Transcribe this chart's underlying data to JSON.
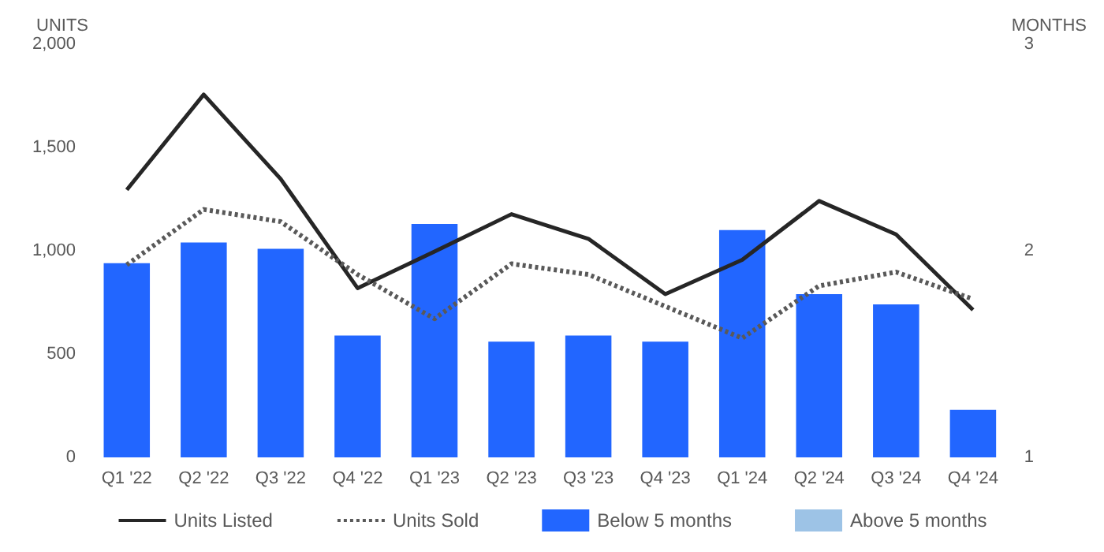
{
  "chart_data": {
    "type": "bar",
    "ylabel": "UNITS",
    "y2label": "MONTHS",
    "categories": [
      "Q1 '22",
      "Q2 '22",
      "Q3 '22",
      "Q4 '22",
      "Q1 '23",
      "Q2 '23",
      "Q3 '23",
      "Q4 '23",
      "Q1 '24",
      "Q2 '24",
      "Q3 '24",
      "Q4 '24"
    ],
    "series": [
      {
        "name": "Units Listed",
        "type": "line",
        "color": "#262626",
        "line_style": "solid",
        "values": [
          1295,
          1756,
          1348,
          819,
          996,
          1177,
          1058,
          790,
          956,
          1241,
          1079,
          714
        ]
      },
      {
        "name": "Units Sold",
        "type": "line",
        "color": "#595959",
        "line_style": "dotted",
        "values": [
          932,
          1200,
          1141,
          885,
          671,
          937,
          885,
          731,
          577,
          830,
          897,
          766
        ]
      },
      {
        "name": "Below 5 months",
        "axis": "y2",
        "color": "#2266ff",
        "values": [
          1.94,
          2.04,
          2.01,
          1.59,
          2.13,
          1.56,
          1.59,
          1.56,
          2.1,
          1.79,
          1.74,
          1.23
        ]
      },
      {
        "name": "Above 5 months",
        "axis": "y2",
        "color": "#9dc3e6",
        "values": [
          null,
          null,
          null,
          null,
          null,
          null,
          null,
          null,
          null,
          null,
          null,
          null
        ]
      }
    ],
    "ylim": [
      0,
      2000
    ],
    "yticks": [
      0,
      500,
      {
        "value": 1000,
        "label": "1,000"
      },
      {
        "value": 1500,
        "label": "1,500"
      },
      {
        "value": 2000,
        "label": "2,000"
      }
    ],
    "y2lim": [
      1,
      3
    ],
    "y2ticks": [
      1,
      2,
      3
    ],
    "marker": "none",
    "grid": false,
    "legend": "bottom"
  }
}
